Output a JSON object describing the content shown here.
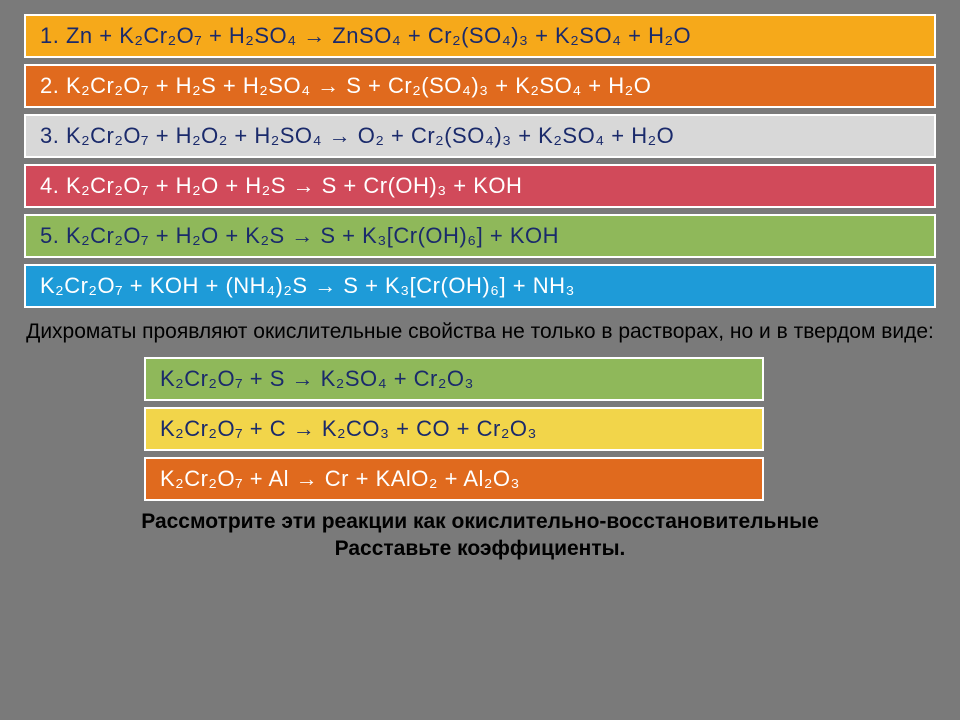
{
  "rows": [
    {
      "bg": "#f6a91a",
      "fg": "#1a2a6b",
      "text": "1. Zn + K₂Cr₂O₇ + H₂SO₄ → ZnSO₄ + Cr₂(SO₄)₃ + K₂SO₄ + H₂O",
      "short": false
    },
    {
      "bg": "#e06a1e",
      "fg": "#ffffff",
      "text": "2. K₂Cr₂O₇ + H₂S + H₂SO₄ → S + Cr₂(SO₄)₃ + K₂SO₄ + H₂O",
      "short": false
    },
    {
      "bg": "#d8d8d8",
      "fg": "#1a2a6b",
      "text": "3. K₂Cr₂O₇ + H₂O₂ + H₂SO₄ → O₂ + Cr₂(SO₄)₃ + K₂SO₄ + H₂O",
      "short": false
    },
    {
      "bg": "#d14a5a",
      "fg": "#ffffff",
      "text": "4. K₂Cr₂O₇ + H₂O  + H₂S  →  S  +  Cr(OH)₃  +  KOH",
      "short": false
    },
    {
      "bg": "#8fb85a",
      "fg": "#1a2a6b",
      "text": "5. K₂Cr₂O₇ + H₂O  + K₂S  →  S  + K₃[Cr(OH)₆]  +  KOH",
      "short": false
    },
    {
      "bg": "#1e9bd8",
      "fg": "#ffffff",
      "text": "K₂Cr₂O₇ + KOH  + (NH₄)₂S  →  S + K₃[Cr(OH)₆]  +  NH₃",
      "short": false
    }
  ],
  "midText": "Дихроматы проявляют окислительные свойства не только в растворах, но и в твердом виде:",
  "rows2": [
    {
      "bg": "#8fb85a",
      "fg": "#1a2a6b",
      "text": "K₂Cr₂O₇ +  S   → K₂SO₄ + Cr₂O₃",
      "short": true
    },
    {
      "bg": "#f2d54a",
      "fg": "#1a2a6b",
      "text": "K₂Cr₂O₇ +  C   → K₂CO₃ + CO  +  Cr₂O₃",
      "short": true
    },
    {
      "bg": "#e06a1e",
      "fg": "#ffffff",
      "text": "K₂Cr₂O₇ +  Al   → Cr  +  KAlO₂  +  Al₂O₃",
      "short": true
    }
  ],
  "footer1": "Рассмотрите эти реакции как окислительно-восстановительные",
  "footer2": "Расставьте коэффициенты."
}
